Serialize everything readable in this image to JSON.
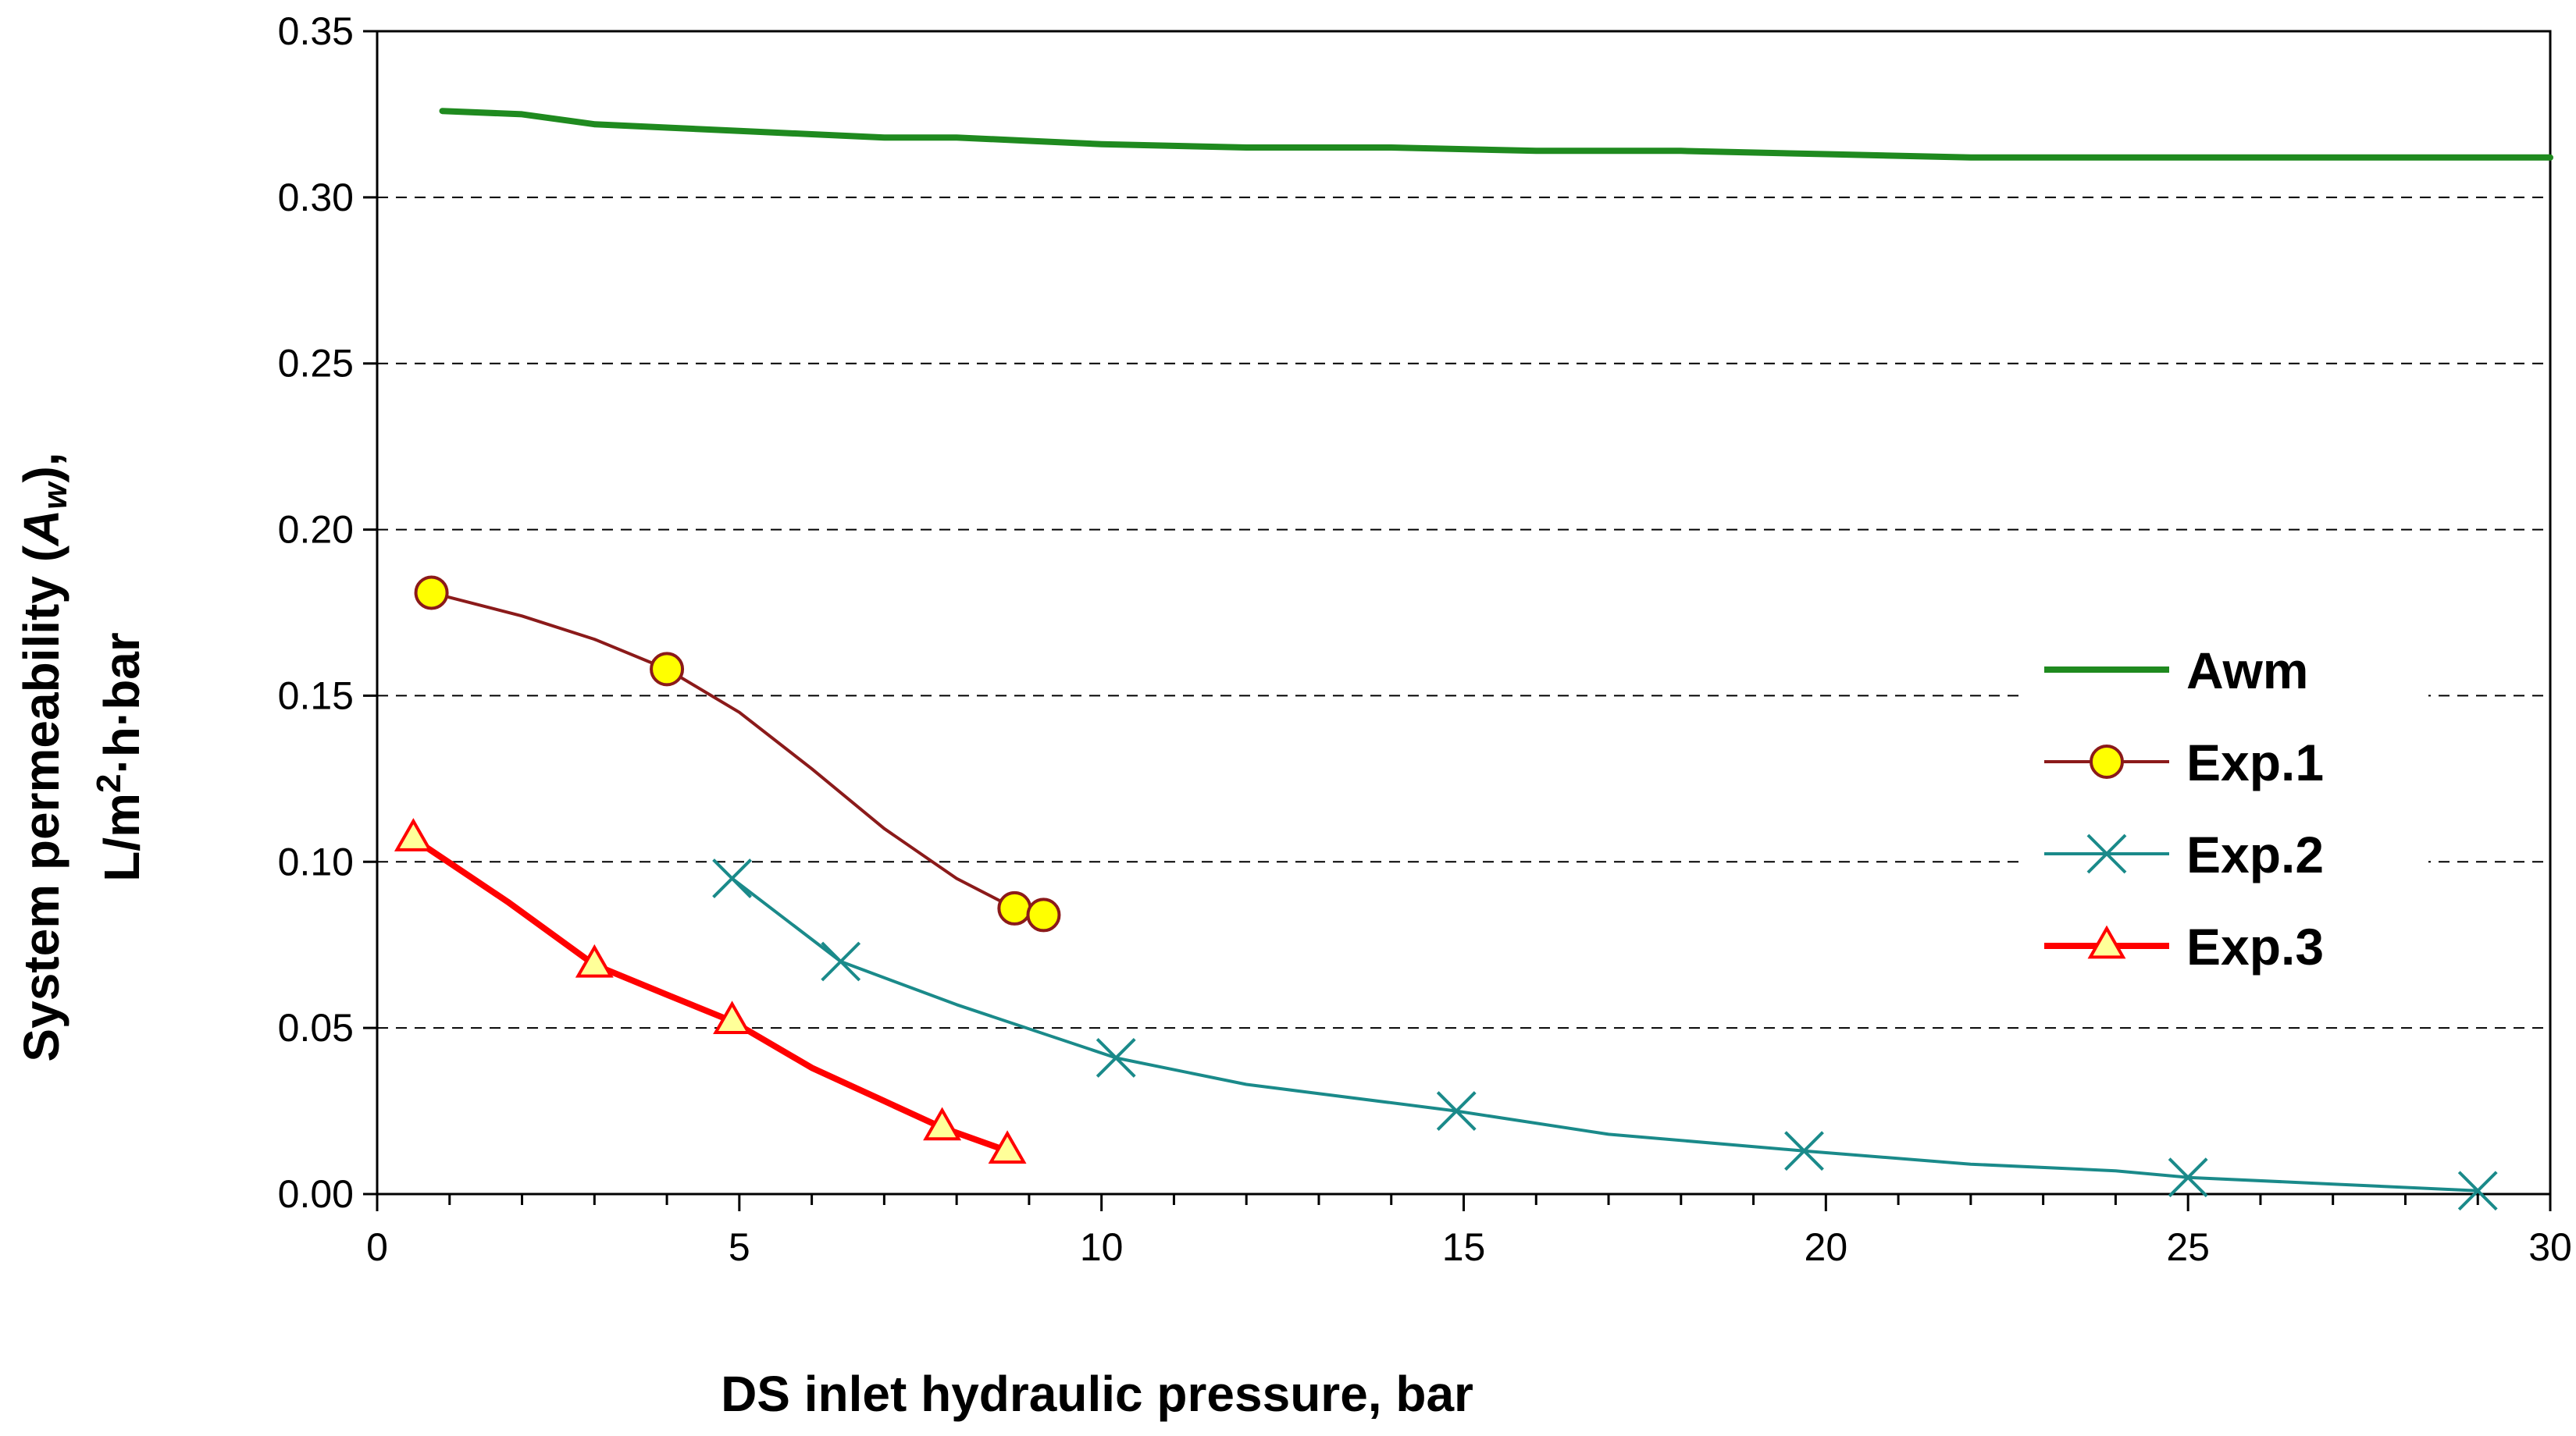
{
  "chart_data": {
    "type": "line",
    "title": "",
    "xlabel": "DS inlet hydraulic pressure, bar",
    "ylabel": {
      "line1_pre": "System permeability (",
      "line1_sym": "A",
      "line1_sub": "w",
      "line1_post": "),",
      "line2_pre": "L/m",
      "line2_sup": "2",
      "line2_post": "·h·bar"
    },
    "xlim": [
      0,
      30
    ],
    "ylim": [
      0,
      0.35
    ],
    "grid": "horizontal-dashed",
    "legend_position": "right",
    "x_ticks": [
      "0",
      "5",
      "10",
      "15",
      "20",
      "25",
      "30"
    ],
    "y_ticks": [
      "0.00",
      "0.05",
      "0.10",
      "0.15",
      "0.20",
      "0.25",
      "0.30",
      "0.35"
    ],
    "series": [
      {
        "name": "Awm",
        "color": "#1f8a1f",
        "marker": "none",
        "x": [
          0.9,
          2,
          3,
          4,
          5,
          6,
          7,
          8,
          9,
          10,
          12,
          14,
          16,
          18,
          20,
          22,
          24,
          26,
          28,
          30
        ],
        "y": [
          0.326,
          0.325,
          0.322,
          0.321,
          0.32,
          0.319,
          0.318,
          0.318,
          0.317,
          0.316,
          0.315,
          0.315,
          0.314,
          0.314,
          0.313,
          0.312,
          0.312,
          0.312,
          0.312,
          0.312
        ],
        "markers_x": [],
        "markers_y": []
      },
      {
        "name": "Exp.1",
        "color": "#8b1a1a",
        "marker": "circle",
        "marker_fill": "#ffff00",
        "x": [
          0.75,
          2,
          3,
          4,
          5,
          6,
          7,
          8,
          8.8,
          9.2
        ],
        "y": [
          0.181,
          0.174,
          0.167,
          0.158,
          0.145,
          0.128,
          0.11,
          0.095,
          0.086,
          0.084
        ],
        "markers_x": [
          0.75,
          4,
          8.8,
          9.2
        ],
        "markers_y": [
          0.181,
          0.158,
          0.086,
          0.084
        ]
      },
      {
        "name": "Exp.2",
        "color": "#1a8a8a",
        "marker": "x",
        "x": [
          4.9,
          6.4,
          8,
          10.2,
          12,
          14.9,
          17,
          19.7,
          22,
          24,
          25,
          27,
          29
        ],
        "y": [
          0.095,
          0.07,
          0.057,
          0.041,
          0.033,
          0.025,
          0.018,
          0.013,
          0.009,
          0.007,
          0.005,
          0.003,
          0.001
        ],
        "markers_x": [
          4.9,
          6.4,
          10.2,
          14.9,
          19.7,
          25,
          29
        ],
        "markers_y": [
          0.095,
          0.07,
          0.041,
          0.025,
          0.013,
          0.005,
          0.001
        ]
      },
      {
        "name": "Exp.3",
        "color": "#ff0000",
        "marker": "triangle",
        "marker_fill": "#ffff99",
        "x": [
          0.5,
          1.8,
          3,
          4,
          4.9,
          6,
          7,
          7.8,
          8.7
        ],
        "y": [
          0.107,
          0.088,
          0.069,
          0.06,
          0.052,
          0.038,
          0.028,
          0.02,
          0.013
        ],
        "markers_x": [
          0.5,
          3,
          4.9,
          7.8,
          8.7
        ],
        "markers_y": [
          0.107,
          0.069,
          0.052,
          0.02,
          0.013
        ]
      }
    ]
  }
}
